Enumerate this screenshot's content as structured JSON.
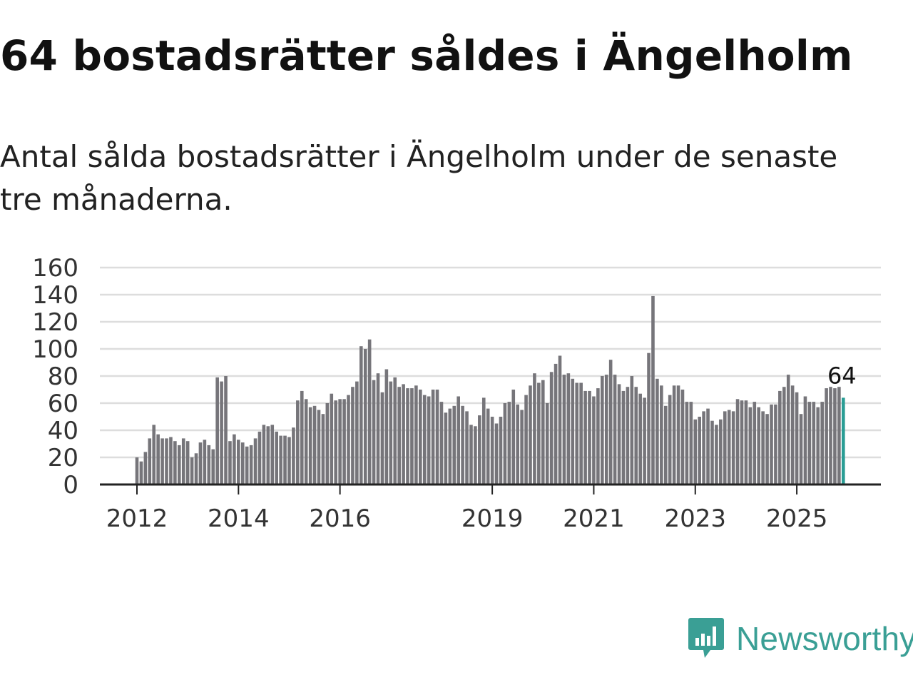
{
  "title": "64 bostadsrätter såldes i Ängelholm",
  "subtitle": "Antal sålda bostadsrätter i Ängelholm under de senaste tre månaderna.",
  "brand": {
    "name": "Newsworthy",
    "color": "#3a9f95"
  },
  "colors": {
    "bar": "#76757a",
    "highlight": "#2a9d95",
    "grid": "#dddddd",
    "axis": "#222222"
  },
  "chart_data": {
    "type": "bar",
    "title": "Antal sålda bostadsrätter i Ängelholm",
    "xlabel": "",
    "ylabel": "",
    "ylim": [
      0,
      160
    ],
    "yticks": [
      0,
      20,
      40,
      60,
      80,
      100,
      120,
      140,
      160
    ],
    "xticks": [
      {
        "label": "2012",
        "index": 0
      },
      {
        "label": "2014",
        "index": 24
      },
      {
        "label": "2016",
        "index": 48
      },
      {
        "label": "2019",
        "index": 84
      },
      {
        "label": "2021",
        "index": 108
      },
      {
        "label": "2023",
        "index": 132
      },
      {
        "label": "2025",
        "index": 156
      }
    ],
    "period": "monthly, 2012-01 to 2025-09",
    "values": [
      20,
      17,
      24,
      34,
      44,
      37,
      34,
      34,
      35,
      32,
      29,
      34,
      32,
      20,
      23,
      31,
      33,
      29,
      26,
      79,
      76,
      80,
      32,
      37,
      33,
      31,
      28,
      29,
      34,
      39,
      44,
      43,
      44,
      39,
      36,
      36,
      35,
      42,
      62,
      69,
      63,
      57,
      58,
      55,
      52,
      60,
      67,
      62,
      63,
      63,
      66,
      72,
      76,
      102,
      100,
      107,
      77,
      82,
      68,
      85,
      76,
      79,
      72,
      74,
      71,
      71,
      73,
      70,
      66,
      65,
      70,
      70,
      61,
      53,
      56,
      58,
      65,
      58,
      54,
      44,
      43,
      51,
      64,
      56,
      50,
      45,
      50,
      60,
      61,
      70,
      59,
      55,
      66,
      73,
      82,
      75,
      77,
      60,
      83,
      89,
      95,
      81,
      82,
      78,
      75,
      75,
      69,
      69,
      65,
      71,
      80,
      81,
      92,
      81,
      74,
      69,
      72,
      80,
      72,
      67,
      64,
      97,
      139,
      78,
      73,
      58,
      66,
      73,
      73,
      70,
      61,
      61,
      48,
      50,
      54,
      56,
      47,
      44,
      48,
      54,
      55,
      54,
      63,
      62,
      62,
      57,
      61,
      57,
      54,
      52,
      59,
      59,
      69,
      72,
      81,
      73,
      68,
      52,
      65,
      61,
      61,
      57,
      61,
      71,
      72,
      71,
      72,
      64
    ],
    "highlight_index": 167,
    "annotation": {
      "label": "64",
      "index": 167
    }
  }
}
